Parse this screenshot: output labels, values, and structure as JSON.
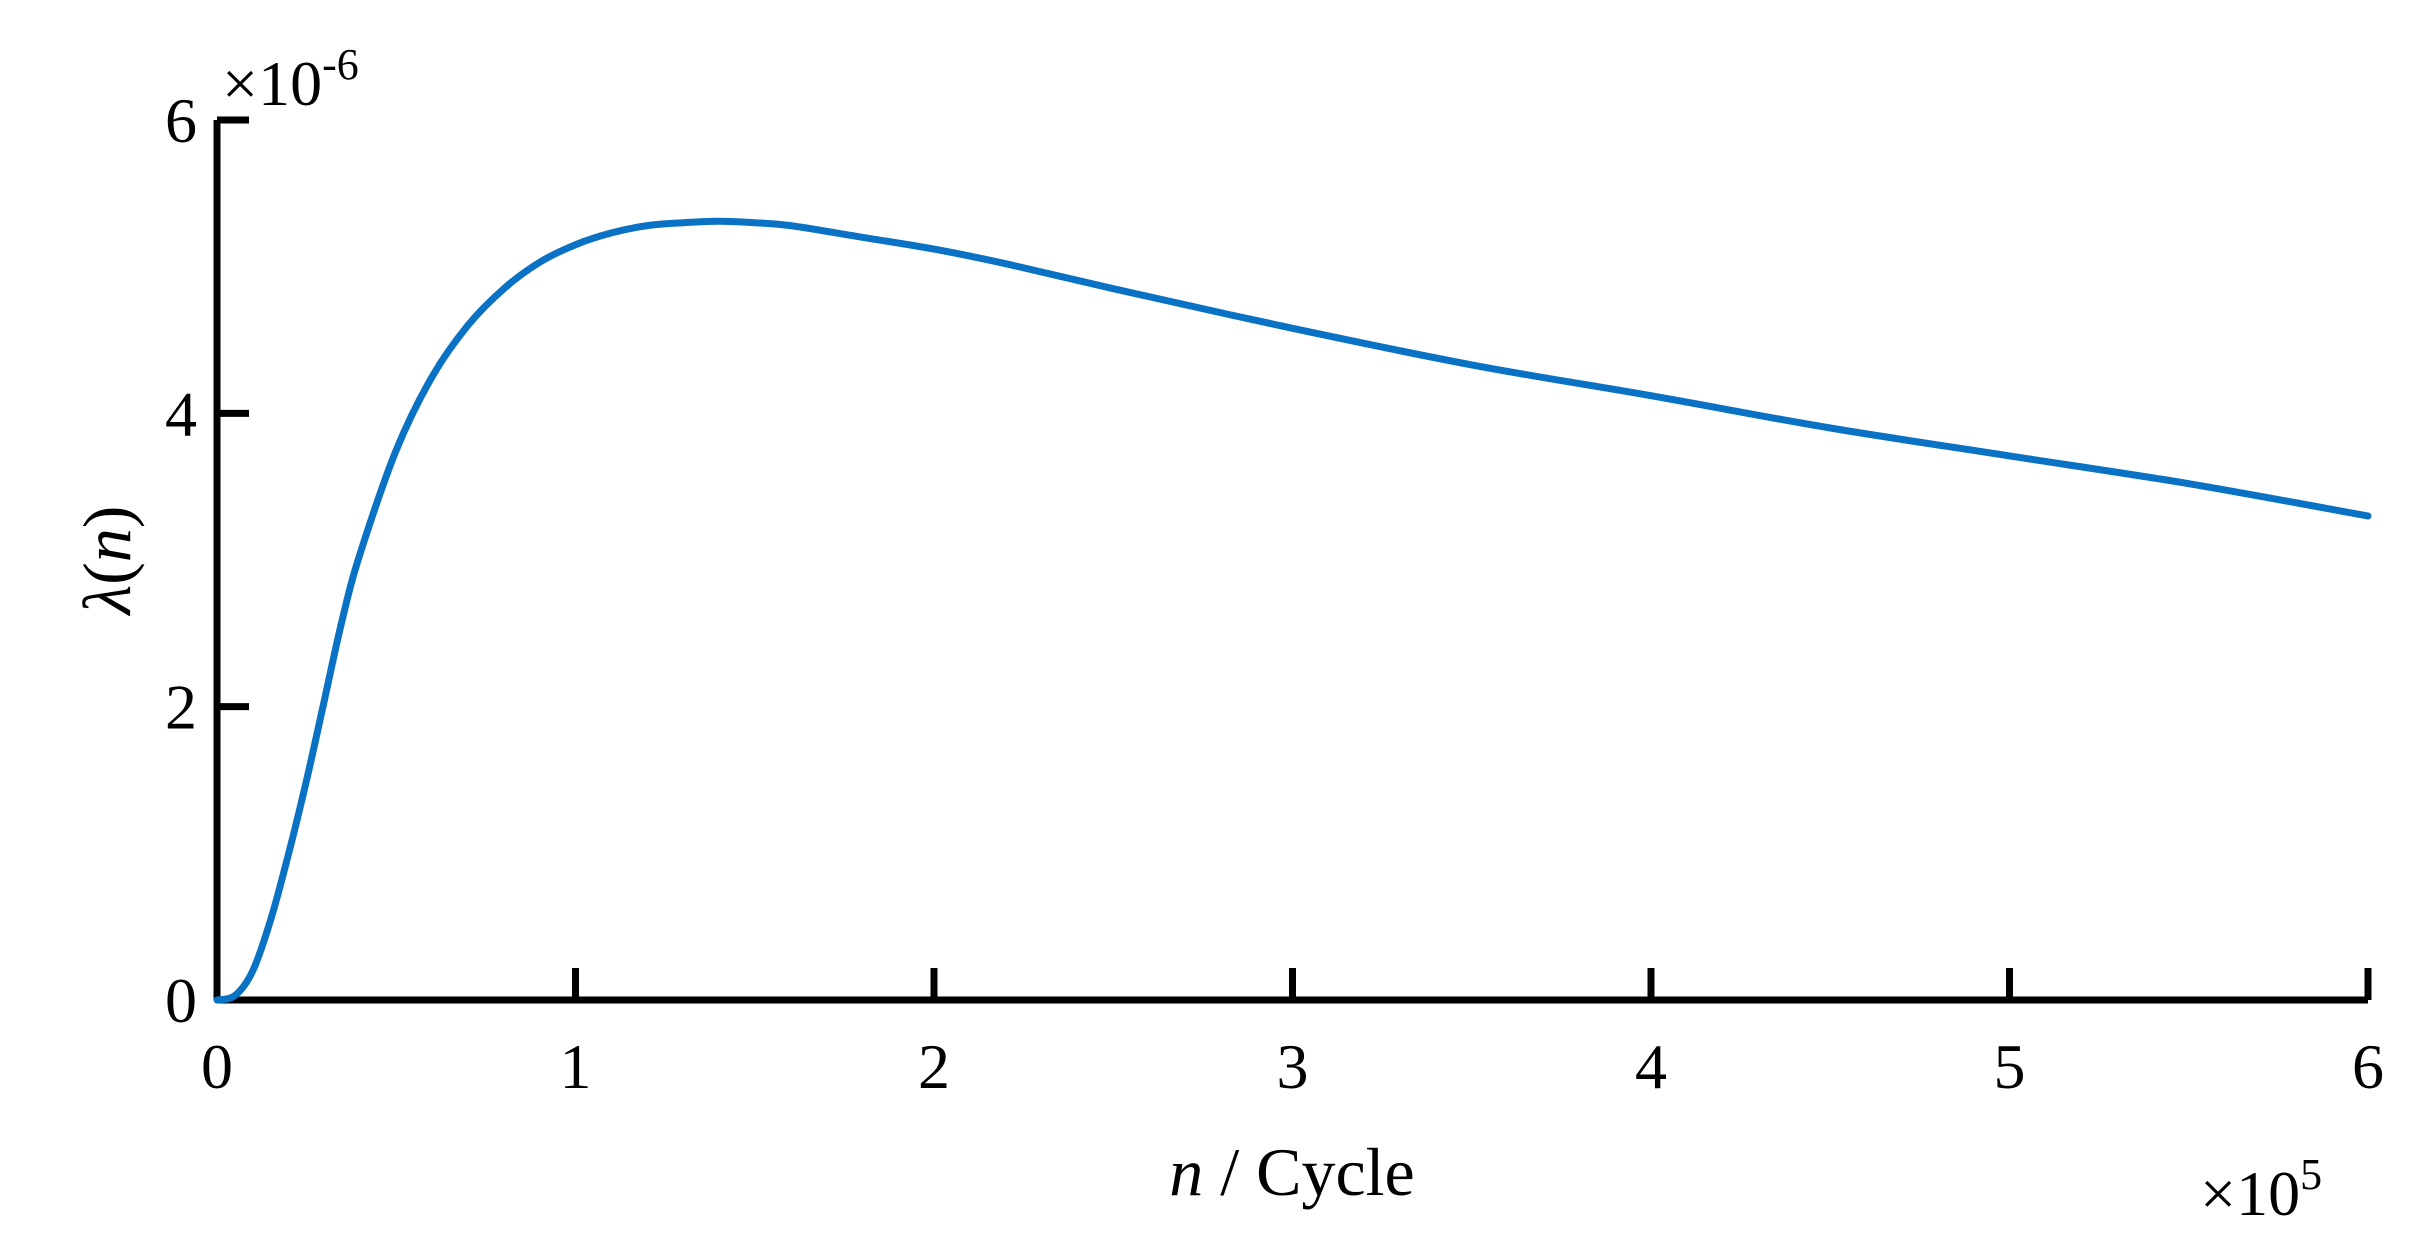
{
  "chart_data": {
    "type": "line",
    "title": "",
    "xlabel": {
      "italic": "n",
      "rest": " / Cycle"
    },
    "ylabel": {
      "italic": "λ",
      "rest": "(",
      "italic2": "n",
      "close": ")"
    },
    "x_multiplier": {
      "base": "×10",
      "exp": "5"
    },
    "y_multiplier": {
      "base": "×10",
      "exp": "-6"
    },
    "xlim": [
      0,
      6
    ],
    "ylim": [
      0,
      6
    ],
    "x_ticks": [
      0,
      1,
      2,
      3,
      4,
      5,
      6
    ],
    "y_ticks": [
      0,
      2,
      4,
      6
    ],
    "x_tick_labels": [
      "0",
      "1",
      "2",
      "3",
      "4",
      "5",
      "6"
    ],
    "y_tick_labels": [
      "0",
      "2",
      "4",
      "6"
    ],
    "grid": false,
    "legend": "none",
    "series": [
      {
        "color": "#0A72C4",
        "x": [
          0,
          0.05,
          0.1,
          0.15,
          0.2,
          0.25,
          0.3,
          0.35,
          0.4,
          0.5,
          0.6,
          0.7,
          0.8,
          0.9,
          1.0,
          1.1,
          1.2,
          1.3,
          1.4,
          1.5,
          1.6,
          1.8,
          2.0,
          2.2,
          2.5,
          3.0,
          3.5,
          4.0,
          4.5,
          5.0,
          5.5,
          6.0
        ],
        "y": [
          0,
          0.03,
          0.2,
          0.55,
          1.0,
          1.5,
          2.05,
          2.6,
          3.05,
          3.75,
          4.25,
          4.6,
          4.85,
          5.03,
          5.15,
          5.23,
          5.28,
          5.3,
          5.31,
          5.3,
          5.28,
          5.2,
          5.12,
          5.02,
          4.85,
          4.58,
          4.33,
          4.12,
          3.9,
          3.71,
          3.52,
          3.3
        ]
      }
    ]
  }
}
